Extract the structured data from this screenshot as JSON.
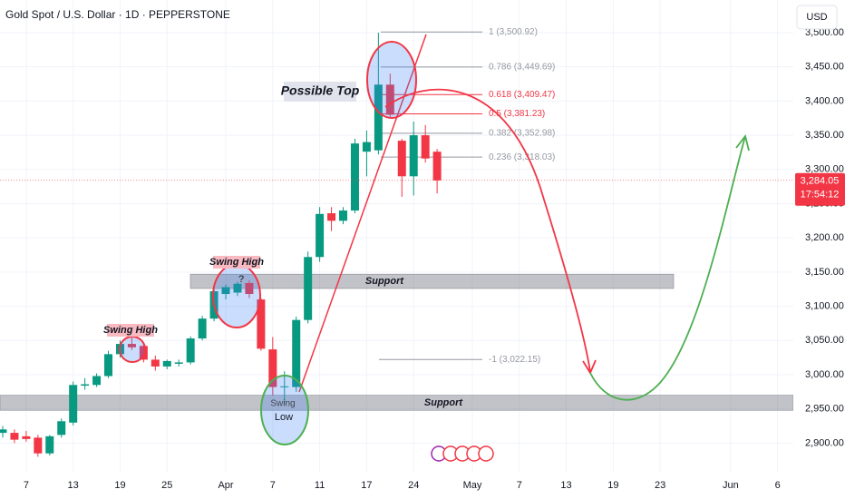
{
  "chart_data": {
    "type": "candlestick",
    "title": "Gold Spot / U.S. Dollar · 1D · PEPPERSTONE",
    "currency": "USD",
    "up_color": "#089981",
    "down_color": "#f23645",
    "xlim": [
      -0.23,
      67.34
    ],
    "ylim": [
      2858.1,
      3547.7
    ],
    "xticks": [
      {
        "value": 2,
        "label": "7"
      },
      {
        "value": 6,
        "label": "13"
      },
      {
        "value": 10,
        "label": "19"
      },
      {
        "value": 14,
        "label": "25"
      },
      {
        "value": 19,
        "label": "Apr"
      },
      {
        "value": 23,
        "label": "7"
      },
      {
        "value": 27,
        "label": "11"
      },
      {
        "value": 31,
        "label": "17"
      },
      {
        "value": 35,
        "label": "24"
      },
      {
        "value": 40,
        "label": "May"
      },
      {
        "value": 44,
        "label": "7"
      },
      {
        "value": 48,
        "label": "13"
      },
      {
        "value": 52,
        "label": "19"
      },
      {
        "value": 56,
        "label": "23"
      },
      {
        "value": 62,
        "label": "Jun"
      },
      {
        "value": 66,
        "label": "6"
      }
    ],
    "yticks": [
      {
        "value": 3500,
        "label": "3,500.00"
      },
      {
        "value": 3450,
        "label": "3,450.00"
      },
      {
        "value": 3400,
        "label": "3,400.00"
      },
      {
        "value": 3350,
        "label": "3,350.00"
      },
      {
        "value": 3300,
        "label": "3,300.00"
      },
      {
        "value": 3250,
        "label": "3,250.00"
      },
      {
        "value": 3200,
        "label": "3,200.00"
      },
      {
        "value": 3150,
        "label": "3,150.00"
      },
      {
        "value": 3100,
        "label": "3,100.00"
      },
      {
        "value": 3050,
        "label": "3,050.00"
      },
      {
        "value": 3000,
        "label": "3,000.00"
      },
      {
        "value": 2950,
        "label": "2,950.00"
      },
      {
        "value": 2900,
        "label": "2,900.00"
      }
    ],
    "x": [
      0,
      1,
      2,
      3,
      4,
      5,
      6,
      7,
      8,
      9,
      10,
      11,
      12,
      13,
      14,
      15,
      16,
      17,
      18,
      19,
      20,
      21,
      22,
      23,
      24,
      25,
      26,
      27,
      28,
      29,
      30,
      31,
      32,
      33,
      34,
      35,
      36,
      37
    ],
    "open": [
      2915,
      2915,
      2910,
      2908,
      2885,
      2912,
      2930,
      2984,
      2985,
      2998,
      3030,
      3045,
      3042,
      3022,
      3012,
      3016,
      3018,
      3053,
      3082,
      3118,
      3120,
      3134,
      3110,
      3037,
      2982,
      2982,
      3080,
      3172,
      3236,
      3225,
      3240,
      3326,
      3328,
      3424,
      3342,
      3290,
      3350,
      3326
    ],
    "high": [
      2925,
      2920,
      2918,
      2912,
      2912,
      2936,
      2990,
      2995,
      3002,
      3035,
      3050,
      3057,
      3046,
      3028,
      3022,
      3022,
      3056,
      3086,
      3126,
      3132,
      3136,
      3138,
      3112,
      3055,
      3005,
      3085,
      3180,
      3245,
      3245,
      3245,
      3345,
      3357,
      3500,
      3440,
      3345,
      3370,
      3365,
      3330
    ],
    "low": [
      2908,
      2900,
      2902,
      2880,
      2882,
      2908,
      2926,
      2978,
      2982,
      2995,
      3025,
      3036,
      3018,
      3006,
      3008,
      3012,
      3015,
      3050,
      3078,
      3110,
      3115,
      3112,
      3035,
      2970,
      2957,
      2975,
      3075,
      3165,
      3210,
      3220,
      3236,
      3290,
      3322,
      3375,
      3260,
      3262,
      3310,
      3265
    ],
    "close": [
      2920,
      2905,
      2906,
      2885,
      2910,
      2932,
      2985,
      2986,
      2998,
      3030,
      3045,
      3040,
      3022,
      3012,
      3020,
      3018,
      3053,
      3082,
      3122,
      3128,
      3133,
      3118,
      3038,
      2982,
      2983,
      3080,
      3172,
      3235,
      3225,
      3240,
      3338,
      3340,
      3424,
      3380,
      3290,
      3350,
      3316,
      3284
    ],
    "last_price": {
      "value": 3284.05,
      "label": "3,284.05",
      "timer": "17:54:12"
    },
    "fib_levels": [
      {
        "value": 3500.92,
        "label": "1 (3,500.92)",
        "color": "#9598a1"
      },
      {
        "value": 3449.69,
        "label": "0.786 (3,449.69)",
        "color": "#9598a1"
      },
      {
        "value": 3409.47,
        "label": "0.618 (3,409.47)",
        "color": "#f23645"
      },
      {
        "value": 3381.23,
        "label": "0.5 (3,381.23)",
        "color": "#f23645"
      },
      {
        "value": 3352.98,
        "label": "0.382 (3,352.98)",
        "color": "#9598a1"
      },
      {
        "value": 3318.03,
        "label": "0.236 (3,318.03)",
        "color": "#9598a1"
      },
      {
        "value": 3022.15,
        "label": "-1 (3,022.15)",
        "color": "#9598a1"
      }
    ],
    "support_zones": [
      {
        "label": "Support",
        "top": 3147,
        "bottom": 3126
      },
      {
        "label": "Support",
        "top": 2970,
        "bottom": 2948
      }
    ],
    "annotations": {
      "possible_top": "Possible Top",
      "swing_high_1": "Swing High",
      "swing_high_2": "Swing High",
      "question": "?",
      "swing_low_1": "Swing",
      "swing_low_2": "Low"
    }
  }
}
